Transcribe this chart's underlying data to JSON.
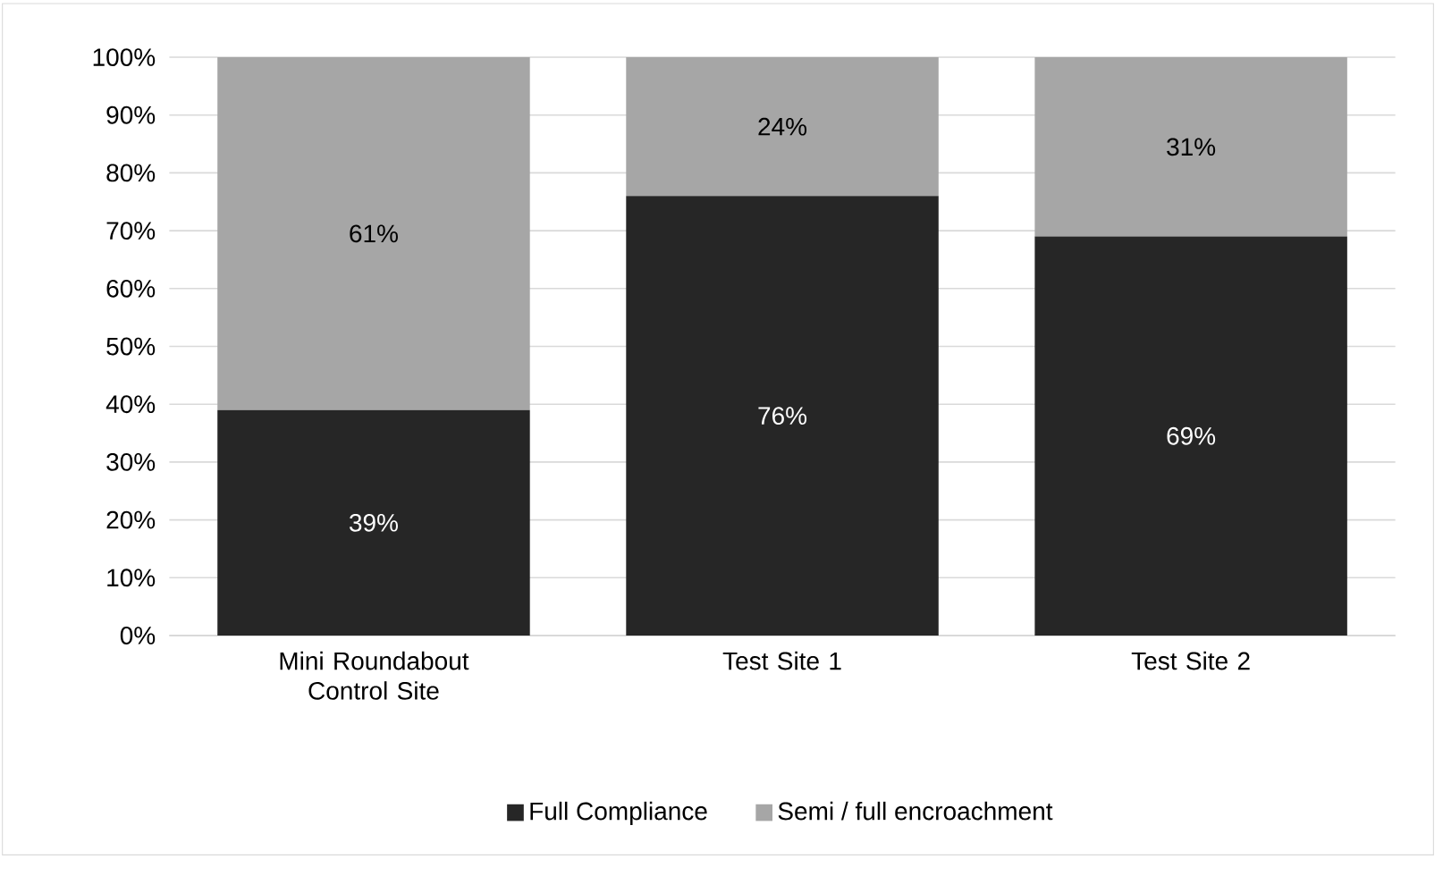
{
  "chart_data": {
    "type": "bar",
    "stacked": true,
    "categories": [
      "Mini Roundabout Control Site",
      "Test Site 1",
      "Test Site 2"
    ],
    "series": [
      {
        "name": "Full Compliance",
        "color": "#262626",
        "values": [
          39,
          76,
          69
        ],
        "value_labels": [
          "39%",
          "76%",
          "69%"
        ]
      },
      {
        "name": "Semi / full encroachment",
        "color": "#a6a6a6",
        "values": [
          61,
          24,
          31
        ],
        "value_labels": [
          "61%",
          "24%",
          "31%"
        ]
      }
    ],
    "ylim": [
      0,
      100
    ],
    "yticks": [
      {
        "value": 0,
        "label": "0%"
      },
      {
        "value": 10,
        "label": "10%"
      },
      {
        "value": 20,
        "label": "20%"
      },
      {
        "value": 30,
        "label": "30%"
      },
      {
        "value": 40,
        "label": "40%"
      },
      {
        "value": 50,
        "label": "50%"
      },
      {
        "value": 60,
        "label": "60%"
      },
      {
        "value": 70,
        "label": "70%"
      },
      {
        "value": 80,
        "label": "80%"
      },
      {
        "value": 90,
        "label": "90%"
      },
      {
        "value": 100,
        "label": "100%"
      }
    ],
    "grid": "y",
    "legend": "bottom"
  }
}
